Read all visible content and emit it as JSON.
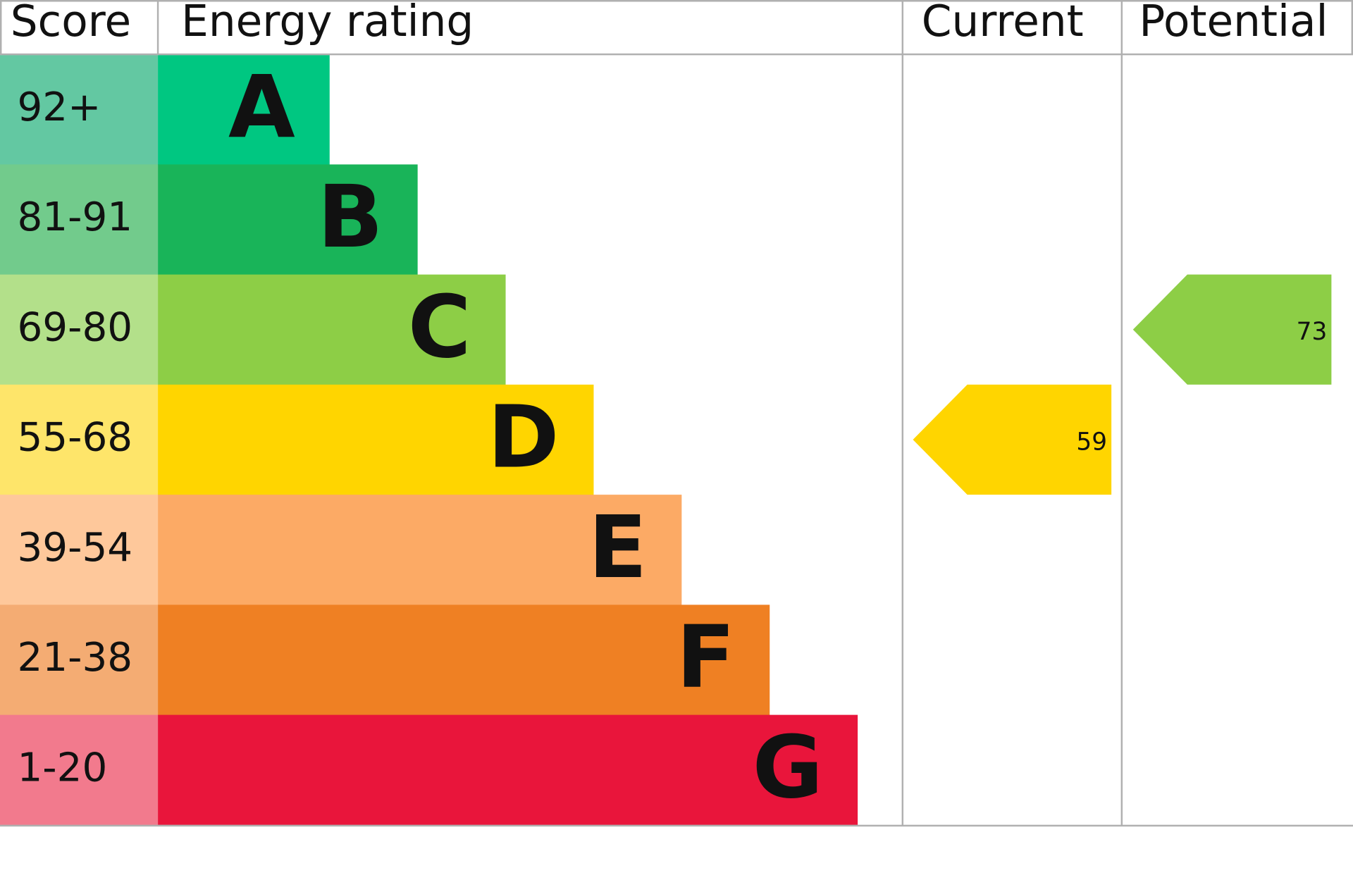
{
  "chart_data": {
    "type": "epc",
    "headers": {
      "score": "Score",
      "rating": "Energy rating",
      "current": "Current",
      "potential": "Potential"
    },
    "bands": [
      {
        "score": "92+",
        "letter": "A",
        "score_color": "#63c8a2",
        "color": "#00c781"
      },
      {
        "score": "81-91",
        "letter": "B",
        "score_color": "#72cb8c",
        "color": "#19b459"
      },
      {
        "score": "69-80",
        "letter": "C",
        "score_color": "#b3e08a",
        "color": "#8dce46"
      },
      {
        "score": "55-68",
        "letter": "D",
        "score_color": "#fee56a",
        "color": "#ffd500"
      },
      {
        "score": "39-54",
        "letter": "E",
        "score_color": "#fec89b",
        "color": "#fcaa65"
      },
      {
        "score": "21-38",
        "letter": "F",
        "score_color": "#f4ac73",
        "color": "#ef8023"
      },
      {
        "score": "1-20",
        "letter": "G",
        "score_color": "#f27a8d",
        "color": "#e9153b"
      }
    ],
    "current": 59,
    "potential": 73
  }
}
